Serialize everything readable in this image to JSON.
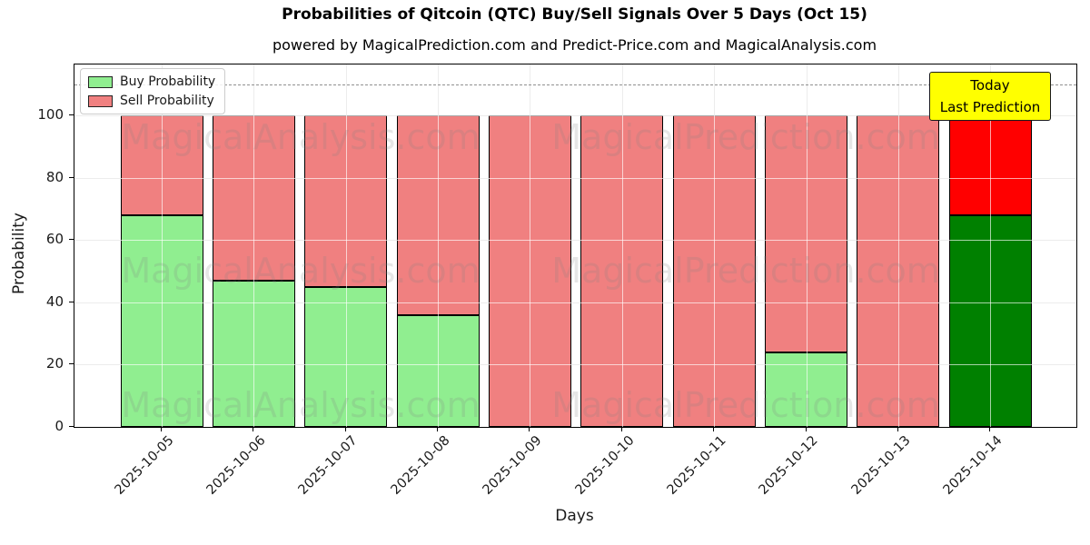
{
  "chart_data": {
    "type": "bar",
    "stacked": true,
    "title": "Probabilities of Qitcoin (QTC) Buy/Sell Signals Over 5 Days (Oct 15)",
    "subtitle": "powered by MagicalPrediction.com and Predict-Price.com and MagicalAnalysis.com",
    "xlabel": "Days",
    "ylabel": "Probability",
    "categories": [
      "2025-10-05",
      "2025-10-06",
      "2025-10-07",
      "2025-10-08",
      "2025-10-09",
      "2025-10-10",
      "2025-10-11",
      "2025-10-12",
      "2025-10-13",
      "2025-10-14"
    ],
    "series": [
      {
        "name": "Buy Probability",
        "color": "#90EE90",
        "values": [
          68,
          47,
          45,
          36,
          0,
          0,
          0,
          24,
          0,
          68
        ]
      },
      {
        "name": "Sell Probability",
        "color": "#F08080",
        "values": [
          32,
          53,
          55,
          64,
          100,
          100,
          100,
          76,
          100,
          32
        ]
      }
    ],
    "highlight": {
      "index": 9,
      "buy_color": "#008000",
      "sell_color": "#FF0000",
      "label_line1": "Today",
      "label_line2": "Last Prediction",
      "label_bg": "#FFFF00"
    },
    "yticks": [
      0,
      20,
      40,
      60,
      80,
      100
    ],
    "ylim": [
      0,
      116.3
    ],
    "dashed_line_y": 110,
    "grid": true,
    "legend_position": "upper left",
    "watermarks": {
      "left": "MagicalAnalysis.com",
      "right": "MagicalPrediction.com"
    }
  }
}
